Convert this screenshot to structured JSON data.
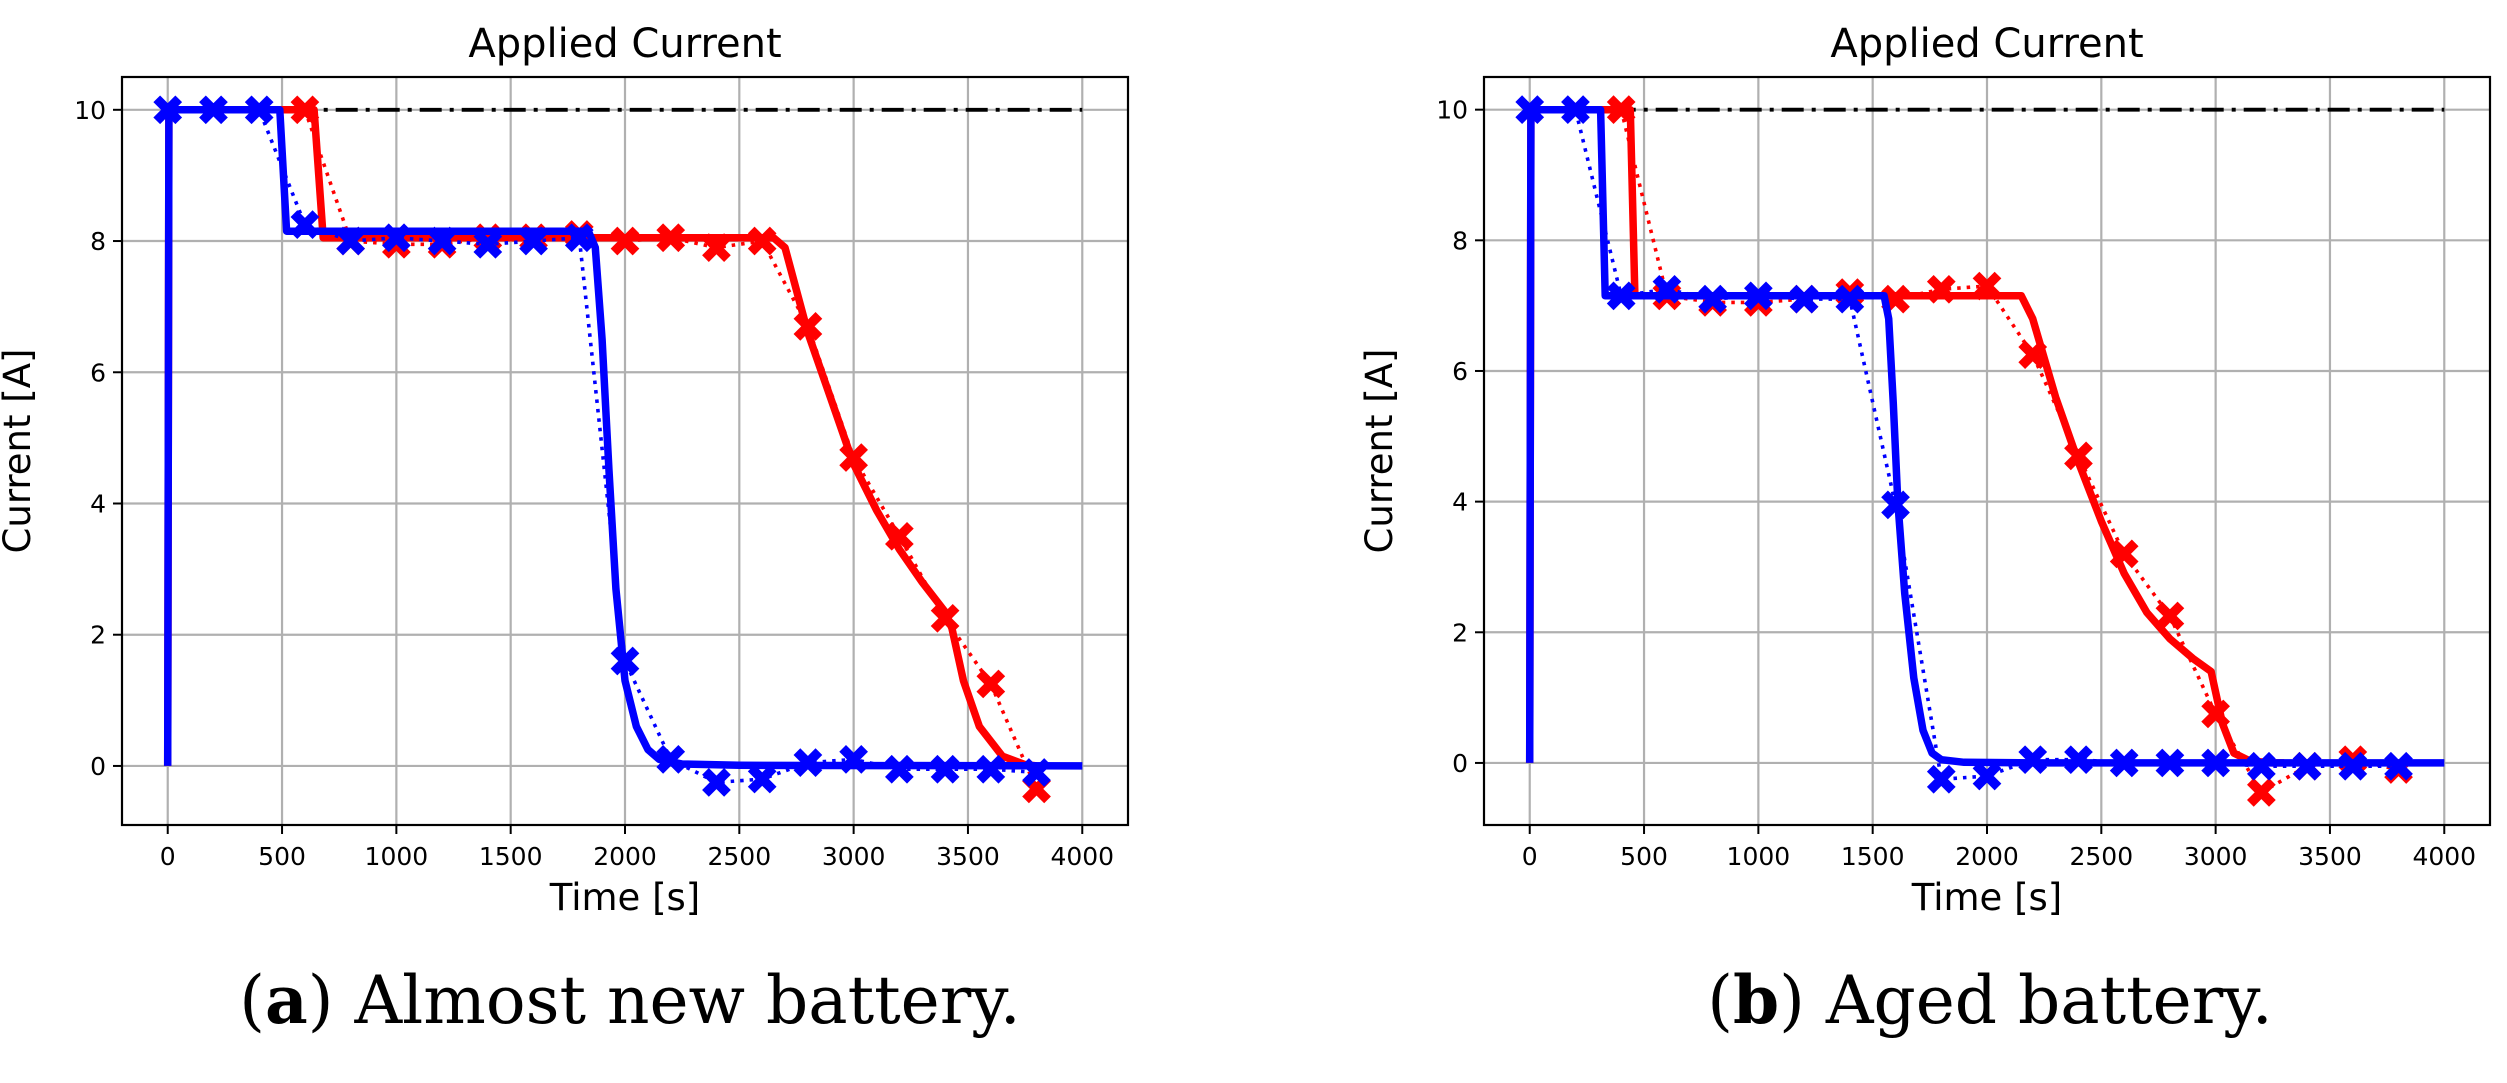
{
  "chart_data": [
    {
      "type": "line",
      "title": "Applied Current",
      "xlabel": "Time [s]",
      "ylabel": "Current [A]",
      "xlim": [
        -200,
        4200
      ],
      "ylim": [
        -0.9,
        10.5
      ],
      "xticks": [
        0,
        500,
        1000,
        1500,
        2000,
        2500,
        3000,
        3500,
        4000
      ],
      "yticks": [
        0,
        2,
        4,
        6,
        8,
        10
      ],
      "xtick_labels": [
        "0",
        "500",
        "1000",
        "1500",
        "2000",
        "2500",
        "3000",
        "3500",
        "4000"
      ],
      "ytick_labels": [
        "0",
        "2",
        "4",
        "6",
        "8",
        "10"
      ],
      "grid": true,
      "caption": {
        "letter": "a",
        "text": ") Almost new battery."
      },
      "series": [
        {
          "name": "limit",
          "color": "#000000",
          "style": "dashdot",
          "x": [
            0,
            4000
          ],
          "y": [
            10,
            10
          ]
        },
        {
          "name": "red solid",
          "color": "#ff0000",
          "style": "solid",
          "x": [
            0,
            5,
            640,
            680,
            700,
            2650,
            2700,
            2800,
            2900,
            3000,
            3100,
            3200,
            3300,
            3400,
            3430,
            3480,
            3550,
            3650,
            3750,
            3800
          ],
          "y": [
            0,
            10,
            10,
            8.05,
            8.05,
            8.05,
            7.9,
            6.6,
            5.6,
            4.6,
            3.9,
            3.3,
            2.8,
            2.35,
            2.1,
            1.3,
            0.6,
            0.15,
            0.02,
            0
          ]
        },
        {
          "name": "red dotted",
          "color": "#ff0000",
          "style": "dotted",
          "x": [
            600,
            800,
            1000,
            1200,
            1400,
            1600,
            1800,
            2000,
            2200,
            2400,
            2600,
            2800,
            3000,
            3200,
            3400,
            3600,
            3800
          ],
          "y": [
            10,
            8.0,
            7.95,
            7.95,
            8.05,
            8.05,
            8.1,
            8.0,
            8.05,
            7.9,
            8.0,
            6.7,
            4.7,
            3.5,
            2.25,
            1.25,
            -0.35
          ]
        },
        {
          "name": "red markers",
          "color": "#ff0000",
          "style": "markers",
          "x": [
            600,
            800,
            1000,
            1200,
            1400,
            1600,
            1800,
            2000,
            2200,
            2400,
            2600,
            2800,
            3000,
            3200,
            3400,
            3600,
            3800
          ],
          "y": [
            10,
            8.0,
            7.95,
            7.95,
            8.05,
            8.05,
            8.1,
            8.0,
            8.05,
            7.9,
            8.0,
            6.7,
            4.7,
            3.5,
            2.25,
            1.25,
            -0.35
          ]
        },
        {
          "name": "blue solid",
          "color": "#0000ff",
          "style": "solid",
          "x": [
            0,
            5,
            490,
            520,
            540,
            1840,
            1870,
            1900,
            1930,
            1960,
            2000,
            2050,
            2100,
            2150,
            2250,
            2500,
            4000
          ],
          "y": [
            0,
            10,
            10,
            8.15,
            8.15,
            8.15,
            7.9,
            6.5,
            4.5,
            2.7,
            1.3,
            0.6,
            0.25,
            0.1,
            0.03,
            0.01,
            0
          ]
        },
        {
          "name": "blue dotted",
          "color": "#0000ff",
          "style": "dotted",
          "x": [
            0,
            200,
            400,
            600,
            800,
            1000,
            1200,
            1400,
            1600,
            1800,
            2000,
            2200,
            2400,
            2600,
            2800,
            3000,
            3200,
            3400,
            3600,
            3800
          ],
          "y": [
            10,
            10,
            10,
            8.25,
            8.0,
            8.05,
            8.0,
            7.95,
            8.0,
            8.05,
            1.6,
            0.1,
            -0.25,
            -0.2,
            0.05,
            0.1,
            -0.05,
            -0.05,
            -0.05,
            -0.1
          ]
        },
        {
          "name": "blue markers",
          "color": "#0000ff",
          "style": "markers",
          "x": [
            0,
            200,
            400,
            600,
            800,
            1000,
            1200,
            1400,
            1600,
            1800,
            2000,
            2200,
            2400,
            2600,
            2800,
            3000,
            3200,
            3400,
            3600,
            3800
          ],
          "y": [
            10,
            10,
            10,
            8.25,
            8.0,
            8.05,
            8.0,
            7.95,
            8.0,
            8.05,
            1.6,
            0.1,
            -0.25,
            -0.2,
            0.05,
            0.1,
            -0.05,
            -0.05,
            -0.05,
            -0.1
          ]
        }
      ]
    },
    {
      "type": "line",
      "title": "Applied Current",
      "xlabel": "Time [s]",
      "ylabel": "Current [A]",
      "xlim": [
        -200,
        4200
      ],
      "ylim": [
        -0.95,
        10.5
      ],
      "xticks": [
        0,
        500,
        1000,
        1500,
        2000,
        2500,
        3000,
        3500,
        4000
      ],
      "yticks": [
        0,
        2,
        4,
        6,
        8,
        10
      ],
      "xtick_labels": [
        "0",
        "500",
        "1000",
        "1500",
        "2000",
        "2500",
        "3000",
        "3500",
        "4000"
      ],
      "ytick_labels": [
        "0",
        "2",
        "4",
        "6",
        "8",
        "10"
      ],
      "grid": true,
      "caption": {
        "letter": "b",
        "text": ") Aged battery."
      },
      "series": [
        {
          "name": "limit",
          "color": "#000000",
          "style": "dashdot",
          "x": [
            0,
            4000
          ],
          "y": [
            10,
            10
          ]
        },
        {
          "name": "red solid",
          "color": "#ff0000",
          "style": "solid",
          "x": [
            0,
            5,
            440,
            460,
            480,
            2150,
            2200,
            2300,
            2400,
            2500,
            2600,
            2700,
            2800,
            2900,
            2980,
            3030,
            3080,
            3150,
            3250,
            3300
          ],
          "y": [
            0,
            10,
            10,
            7.15,
            7.15,
            7.15,
            6.8,
            5.6,
            4.6,
            3.7,
            2.9,
            2.3,
            1.9,
            1.6,
            1.4,
            0.6,
            0.15,
            0.03,
            0,
            0
          ]
        },
        {
          "name": "red dotted",
          "color": "#ff0000",
          "style": "dotted",
          "x": [
            400,
            600,
            800,
            1000,
            1200,
            1400,
            1600,
            1800,
            2000,
            2200,
            2400,
            2600,
            2800,
            3000,
            3200,
            3400,
            3600,
            3800
          ],
          "y": [
            10,
            7.15,
            7.05,
            7.05,
            7.1,
            7.2,
            7.1,
            7.25,
            7.3,
            6.25,
            4.7,
            3.2,
            2.25,
            0.75,
            -0.45,
            -0.05,
            0.05,
            -0.1
          ]
        },
        {
          "name": "red markers",
          "color": "#ff0000",
          "style": "markers",
          "x": [
            400,
            600,
            800,
            1000,
            1200,
            1400,
            1600,
            1800,
            2000,
            2200,
            2400,
            2600,
            2800,
            3000,
            3200,
            3400,
            3600,
            3800
          ],
          "y": [
            10,
            7.15,
            7.05,
            7.05,
            7.1,
            7.2,
            7.1,
            7.25,
            7.3,
            6.25,
            4.7,
            3.2,
            2.25,
            0.75,
            -0.45,
            -0.05,
            0.05,
            -0.1
          ]
        },
        {
          "name": "blue solid",
          "color": "#0000ff",
          "style": "solid",
          "x": [
            0,
            5,
            310,
            330,
            350,
            1550,
            1570,
            1590,
            1610,
            1640,
            1680,
            1720,
            1760,
            1800,
            1900,
            2200,
            4000
          ],
          "y": [
            0,
            10,
            10,
            7.15,
            7.15,
            7.15,
            6.8,
            5.5,
            4.0,
            2.6,
            1.3,
            0.5,
            0.15,
            0.05,
            0.01,
            0,
            0
          ]
        },
        {
          "name": "blue dotted",
          "color": "#0000ff",
          "style": "dotted",
          "x": [
            0,
            200,
            400,
            600,
            800,
            1000,
            1200,
            1400,
            1600,
            1800,
            2000,
            2200,
            2400,
            2600,
            2800,
            3000,
            3200,
            3400,
            3600,
            3800
          ],
          "y": [
            10,
            10,
            7.15,
            7.25,
            7.1,
            7.15,
            7.1,
            7.1,
            3.95,
            -0.25,
            -0.2,
            0.05,
            0.05,
            0,
            0,
            0,
            -0.05,
            -0.05,
            -0.05,
            -0.05
          ]
        },
        {
          "name": "blue markers",
          "color": "#0000ff",
          "style": "markers",
          "x": [
            0,
            200,
            400,
            600,
            800,
            1000,
            1200,
            1400,
            1600,
            1800,
            2000,
            2200,
            2400,
            2600,
            2800,
            3000,
            3200,
            3400,
            3600,
            3800
          ],
          "y": [
            10,
            10,
            7.15,
            7.25,
            7.1,
            7.15,
            7.1,
            7.1,
            3.95,
            -0.25,
            -0.2,
            0.05,
            0.05,
            0,
            0,
            0,
            -0.05,
            -0.05,
            -0.05,
            -0.05
          ]
        }
      ]
    }
  ]
}
